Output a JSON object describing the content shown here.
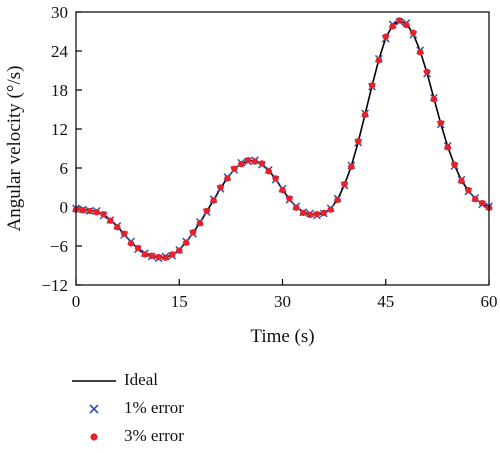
{
  "chart_data": {
    "type": "line",
    "title": "",
    "xlabel": "Time (s)",
    "ylabel": "Angular velocity (°/s)",
    "xlim": [
      0,
      60
    ],
    "ylim": [
      -12,
      30
    ],
    "xticks": [
      0,
      15,
      30,
      45,
      60
    ],
    "yticks": [
      -12,
      -6,
      0,
      6,
      12,
      18,
      24,
      30
    ],
    "xtick_labels": [
      "0",
      "15",
      "30",
      "45",
      "60"
    ],
    "ytick_labels": [
      "−12",
      "−6",
      "0",
      "6",
      "12",
      "18",
      "24",
      "30"
    ],
    "grid": false,
    "legend_position": "below",
    "series": [
      {
        "name": "Ideal",
        "style": "line",
        "color": "#000000",
        "x": [
          0,
          1,
          2,
          3,
          4,
          5,
          6,
          7,
          8,
          9,
          10,
          11,
          12,
          13,
          14,
          15,
          16,
          17,
          18,
          19,
          20,
          21,
          22,
          23,
          24,
          25,
          26,
          27,
          28,
          29,
          30,
          31,
          32,
          33,
          34,
          35,
          36,
          37,
          38,
          39,
          40,
          41,
          42,
          43,
          44,
          45,
          46,
          47,
          48,
          49,
          50,
          51,
          52,
          53,
          54,
          55,
          56,
          57,
          58,
          59,
          60
        ],
        "y": [
          -0.3,
          -0.4,
          -0.5,
          -0.7,
          -1.2,
          -2.0,
          -3.0,
          -4.2,
          -5.4,
          -6.4,
          -7.2,
          -7.6,
          -7.8,
          -7.7,
          -7.4,
          -6.6,
          -5.4,
          -4.0,
          -2.4,
          -0.7,
          1.1,
          2.9,
          4.5,
          5.8,
          6.7,
          7.1,
          7.1,
          6.6,
          5.6,
          4.3,
          2.7,
          1.2,
          0.0,
          -0.8,
          -1.1,
          -1.2,
          -1.0,
          -0.3,
          1.2,
          3.4,
          6.3,
          10.0,
          14.3,
          18.6,
          22.7,
          26.0,
          28.0,
          28.6,
          28.2,
          26.6,
          24.0,
          20.6,
          16.7,
          12.8,
          9.3,
          6.4,
          4.1,
          2.5,
          1.3,
          0.5,
          0.0
        ]
      },
      {
        "name": "1% error",
        "style": "x-marker",
        "color": "#2f55a4",
        "x": [
          0,
          1,
          2,
          3,
          4,
          5,
          6,
          7,
          8,
          9,
          10,
          11,
          12,
          13,
          14,
          15,
          16,
          17,
          18,
          19,
          20,
          21,
          22,
          23,
          24,
          25,
          26,
          27,
          28,
          29,
          30,
          31,
          32,
          33,
          34,
          35,
          36,
          37,
          38,
          39,
          40,
          41,
          42,
          43,
          44,
          45,
          46,
          47,
          48,
          49,
          50,
          51,
          52,
          53,
          54,
          55,
          56,
          57,
          58,
          59,
          60
        ],
        "y": [
          -0.2,
          -0.4,
          -0.6,
          -0.6,
          -1.3,
          -2.0,
          -2.9,
          -4.3,
          -5.3,
          -6.5,
          -7.1,
          -7.6,
          -7.9,
          -7.6,
          -7.5,
          -6.6,
          -5.3,
          -4.1,
          -2.3,
          -0.8,
          1.2,
          2.8,
          4.6,
          5.7,
          6.8,
          7.0,
          7.2,
          6.5,
          5.7,
          4.2,
          2.8,
          1.1,
          0.1,
          -0.8,
          -1.0,
          -1.3,
          -1.0,
          -0.2,
          1.3,
          3.3,
          6.4,
          9.9,
          14.4,
          18.5,
          22.8,
          25.9,
          28.1,
          28.5,
          28.3,
          26.5,
          24.1,
          20.5,
          16.8,
          12.7,
          9.4,
          6.3,
          4.2,
          2.4,
          1.4,
          0.4,
          0.1
        ]
      },
      {
        "name": "3% error",
        "style": "dot-marker",
        "color": "#e8202a",
        "x": [
          0,
          1,
          2,
          3,
          4,
          5,
          6,
          7,
          8,
          9,
          10,
          11,
          12,
          13,
          14,
          15,
          16,
          17,
          18,
          19,
          20,
          21,
          22,
          23,
          24,
          25,
          26,
          27,
          28,
          29,
          30,
          31,
          32,
          33,
          34,
          35,
          36,
          37,
          38,
          39,
          40,
          41,
          42,
          43,
          44,
          45,
          46,
          47,
          48,
          49,
          50,
          51,
          52,
          53,
          54,
          55,
          56,
          57,
          58,
          59,
          60
        ],
        "y": [
          -0.4,
          -0.5,
          -0.6,
          -0.8,
          -1.1,
          -2.1,
          -3.1,
          -4.1,
          -5.6,
          -6.3,
          -7.3,
          -7.5,
          -7.7,
          -7.8,
          -7.3,
          -6.7,
          -5.5,
          -3.9,
          -2.5,
          -0.6,
          1.0,
          3.0,
          4.4,
          5.9,
          6.6,
          7.2,
          7.0,
          6.7,
          5.5,
          4.4,
          2.6,
          1.3,
          -0.1,
          -0.9,
          -1.2,
          -1.1,
          -0.9,
          -0.4,
          1.1,
          3.5,
          6.2,
          10.1,
          14.2,
          18.7,
          22.6,
          26.2,
          27.8,
          28.7,
          28.0,
          26.8,
          23.8,
          20.8,
          16.6,
          12.9,
          9.2,
          6.5,
          4.0,
          2.6,
          1.2,
          0.6,
          -0.1
        ]
      }
    ]
  }
}
